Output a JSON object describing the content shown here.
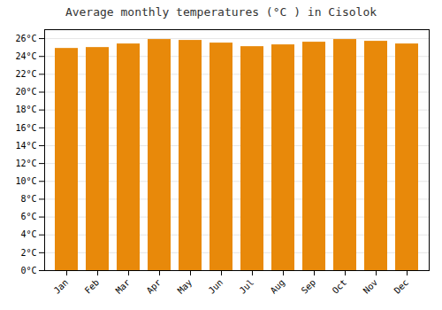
{
  "chart_data": {
    "type": "bar",
    "title": "Average monthly temperatures (°C ) in Cisolok",
    "categories": [
      "Jan",
      "Feb",
      "Mar",
      "Apr",
      "May",
      "Jun",
      "Jul",
      "Aug",
      "Sep",
      "Oct",
      "Nov",
      "Dec"
    ],
    "values": [
      24.9,
      25.0,
      25.4,
      25.9,
      25.8,
      25.5,
      25.1,
      25.3,
      25.6,
      25.9,
      25.7,
      25.4
    ],
    "color": "#E8890A",
    "ylim": [
      0,
      27
    ],
    "yticks": [
      {
        "value": 0,
        "label": "0°C"
      },
      {
        "value": 2,
        "label": "2°C"
      },
      {
        "value": 4,
        "label": "4°C"
      },
      {
        "value": 6,
        "label": "6°C"
      },
      {
        "value": 8,
        "label": "8°C"
      },
      {
        "value": 10,
        "label": "10°C"
      },
      {
        "value": 12,
        "label": "12°C"
      },
      {
        "value": 14,
        "label": "14°C"
      },
      {
        "value": 16,
        "label": "16°C"
      },
      {
        "value": 18,
        "label": "18°C"
      },
      {
        "value": 20,
        "label": "20°C"
      },
      {
        "value": 22,
        "label": "22°C"
      },
      {
        "value": 24,
        "label": "24°C"
      },
      {
        "value": 26,
        "label": "26°C"
      }
    ],
    "grid": true
  }
}
